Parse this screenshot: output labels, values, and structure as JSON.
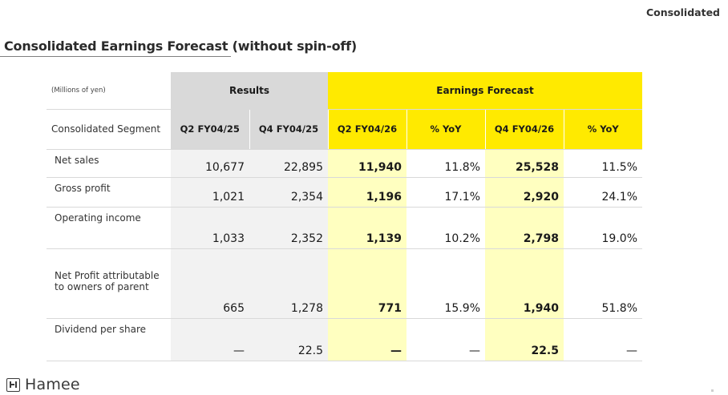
{
  "header": {
    "corner_label": "Consolidated",
    "title": "Consolidated Earnings Forecast (without spin-off)"
  },
  "table": {
    "units": "(Millions of yen)",
    "segment_header": "Consolidated Segment",
    "group_results": "Results",
    "group_forecast": "Earnings Forecast",
    "columns": [
      "Q2 FY04/25",
      "Q4 FY04/25",
      "Q2 FY04/26",
      "% YoY",
      "Q4 FY04/26",
      "% YoY"
    ],
    "rows": [
      {
        "label": "Net sales",
        "values": [
          "10,677",
          "22,895",
          "11,940",
          "11.8%",
          "25,528",
          "11.5%"
        ]
      },
      {
        "label": "Gross profit",
        "values": [
          "1,021",
          "2,354",
          "1,196",
          "17.1%",
          "2,920",
          "24.1%"
        ]
      },
      {
        "label": "Operating income",
        "values": [
          "1,033",
          "2,352",
          "1,139",
          "10.2%",
          "2,798",
          "19.0%"
        ]
      },
      {
        "label": "Net Profit  attributable\nto owners of parent",
        "label_line1": "Net Profit  attributable",
        "label_line2": "to owners of parent",
        "values": [
          "665",
          "1,278",
          "771",
          "15.9%",
          "1,940",
          "51.8%"
        ]
      },
      {
        "label": "Dividend per share",
        "values": [
          "—",
          "22.5",
          "—",
          "—",
          "22.5",
          "—"
        ]
      }
    ]
  },
  "footer": {
    "logo_text": "Hamee"
  },
  "colors": {
    "forecast_yellow": "#ffea00",
    "forecast_light": "#ffffc0",
    "results_gray": "#d9d9d9",
    "results_light": "#f2f2f2"
  }
}
